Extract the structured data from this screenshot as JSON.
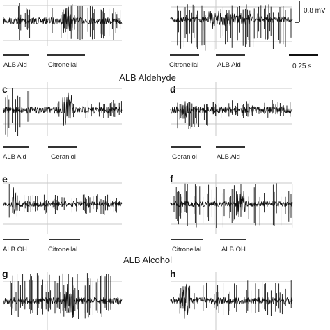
{
  "figure": {
    "scale": {
      "voltage": "0.8 mV",
      "time": "0.25 s"
    },
    "group_titles": [
      "ALB Aldehyde",
      "ALB Alcohol"
    ],
    "panels": [
      {
        "letter": "",
        "stimuli": [
          "ALB Ald",
          "Citronellal"
        ]
      },
      {
        "letter": "",
        "stimuli": [
          "Citronellal",
          "ALB Ald"
        ]
      },
      {
        "letter": "c",
        "stimuli": [
          "ALB Ald",
          "Geraniol"
        ]
      },
      {
        "letter": "d",
        "stimuli": [
          "Geraniol",
          "ALB Ald"
        ]
      },
      {
        "letter": "e",
        "stimuli": [
          "ALB OH",
          "Citronellal"
        ]
      },
      {
        "letter": "f",
        "stimuli": [
          "Citronellal",
          "ALB OH"
        ]
      },
      {
        "letter": "g",
        "stimuli": []
      },
      {
        "letter": "h",
        "stimuli": []
      }
    ]
  }
}
